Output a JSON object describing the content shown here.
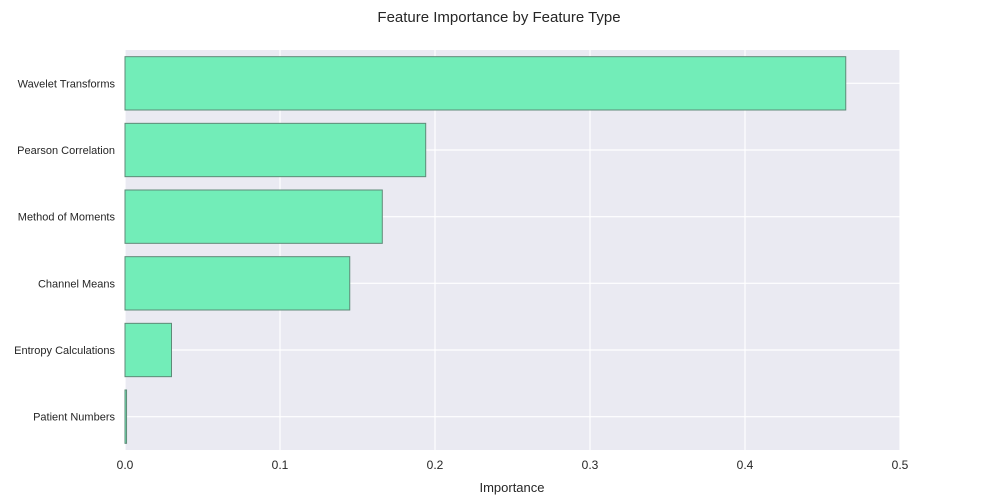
{
  "chart_data": {
    "type": "bar",
    "orientation": "horizontal",
    "title": "Feature Importance by Feature Type",
    "xlabel": "Importance",
    "ylabel": "",
    "categories": [
      "Wavelet Transforms",
      "Pearson Correlation",
      "Method of Moments",
      "Channel Means",
      "Entropy Calculations",
      "Patient Numbers"
    ],
    "values": [
      0.465,
      0.194,
      0.166,
      0.145,
      0.03,
      0.001
    ],
    "xlim": [
      0,
      0.5
    ],
    "xticks": [
      "0.0",
      "0.1",
      "0.2",
      "0.3",
      "0.4",
      "0.5"
    ],
    "grid": true,
    "colors": {
      "bar_fill": "#72edb8",
      "bar_edge": "#5f8a78",
      "plot_background": "#eaeaf2",
      "grid": "#ffffff"
    }
  }
}
